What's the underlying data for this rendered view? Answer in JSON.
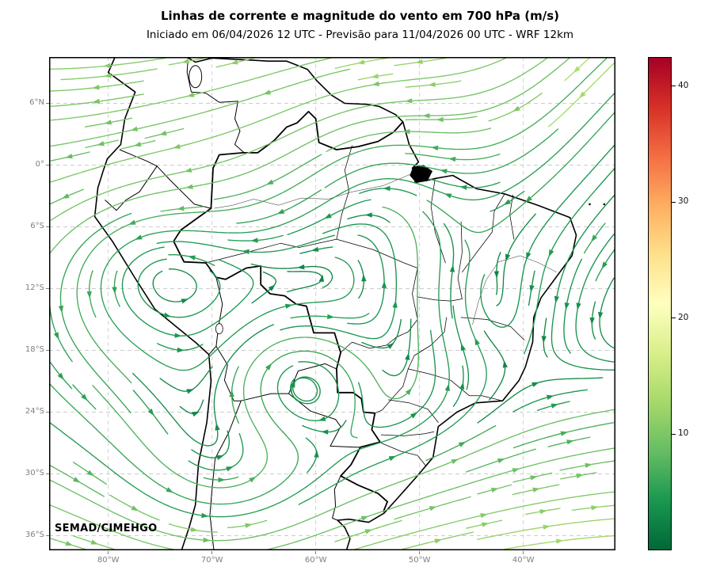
{
  "title": "Linhas de corrente e magnitude do vento em 700 hPa (m/s)",
  "subtitle": "Iniciado em 06/04/2026 12 UTC - Previsão para 11/04/2026 00 UTC - WRF 12km",
  "watermark": "SEMAD/CIMEHGO",
  "map_axes": {
    "y_tick_labels": [
      "6°N",
      "0°",
      "6°S",
      "12°S",
      "18°S",
      "24°S",
      "30°S",
      "36°S"
    ],
    "y_tick_lats": [
      6,
      0,
      -6,
      -12,
      -18,
      -24,
      -30,
      -36
    ],
    "x_tick_labels": [
      "80°W",
      "70°W",
      "60°W",
      "50°W",
      "40°W"
    ],
    "x_tick_lons": [
      -80,
      -70,
      -60,
      -50,
      -40
    ],
    "lon_range": [
      -85.7,
      -31.1
    ],
    "lat_range": [
      -37.4,
      10.5
    ],
    "grid_style": "dashed"
  },
  "colorbar": {
    "tick_labels": [
      "10",
      "20",
      "30",
      "40"
    ],
    "tick_values": [
      10,
      20,
      30,
      40
    ],
    "vmin": 0,
    "vmax": 42.5,
    "colors_low_to_high": [
      "#006837",
      "#1a9850",
      "#66bd63",
      "#a6d96a",
      "#d9ef8b",
      "#ffffbf",
      "#fee08b",
      "#fdae61",
      "#f46d43",
      "#d73027",
      "#a50026"
    ]
  },
  "chart_data": {
    "type": "streamline_map",
    "title": "Linhas de corrente e magnitude do vento em 700 hPa (m/s)",
    "variable": "wind streamlines and magnitude",
    "level": "700 hPa",
    "units": "m/s",
    "model": "WRF 12km",
    "initialized": "06/04/2026 12 UTC",
    "valid": "11/04/2026 00 UTC",
    "source": "SEMAD/CIMEHGO",
    "region": "South America / Brazil",
    "colormap": "green (low) to yellow to red (high)",
    "colorbar_range": [
      0,
      42.5
    ],
    "colorbar_ticks": [
      10,
      20,
      30,
      40
    ],
    "lat_ticks": [
      "6N",
      "0",
      "6S",
      "12S",
      "18S",
      "24S",
      "30S",
      "36S"
    ],
    "lon_ticks_deg_west": [
      80,
      70,
      60,
      50,
      40
    ],
    "flow_summary": {
      "north_half": "easterly flow curving west-southwest",
      "northeast_ocean": "meridional north-to-south flow turning westward near the equator",
      "south_of_25S": "westerly flow with waves and a closed circulation near Paraguay",
      "typical_speed_ms": [
        4,
        14
      ]
    }
  }
}
